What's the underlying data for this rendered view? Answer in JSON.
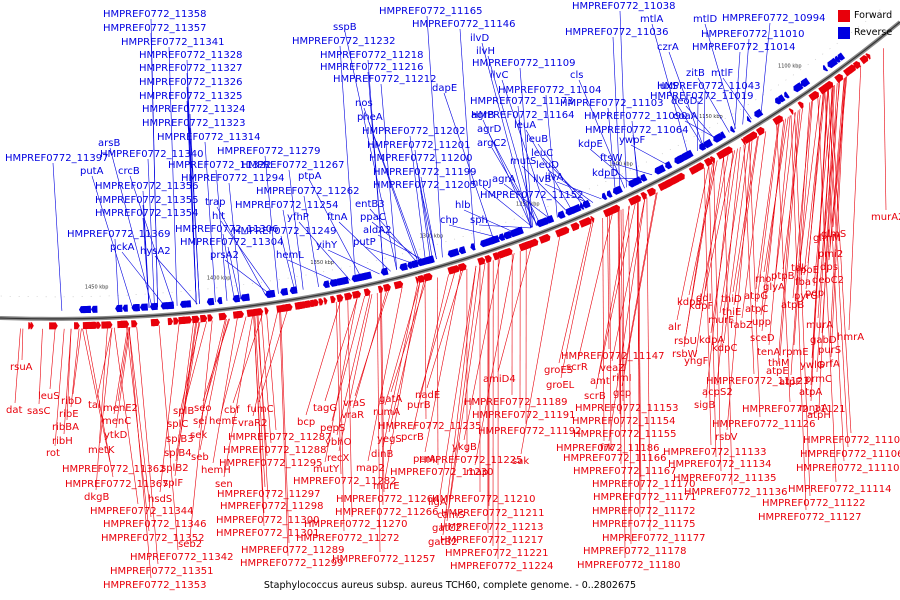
{
  "caption": "Staphylococcus aureus subsp. aureus TCH60, complete genome. - 0..2802675",
  "legend": [
    {
      "label": "Forward",
      "color": "#e8000b"
    },
    {
      "label": "Reverse",
      "color": "#0000e0"
    }
  ],
  "axis_ticks": [
    "1450 kbp",
    "1400 kbp",
    "1350 kbp",
    "1300 kbp",
    "1250 kbp",
    "1200 kbp",
    "1150 kbp",
    "1100 kbp"
  ],
  "reverse_labels": [
    "HMPREF0772_11358",
    "HMPREF0772_11357",
    "HMPREF0772_11341",
    "HMPREF0772_11328",
    "HMPREF0772_11327",
    "HMPREF0772_11326",
    "HMPREF0772_11325",
    "HMPREF0772_11324",
    "HMPREF0772_11323",
    "HMPREF0772_11314",
    "HMPREF0772_11340",
    "HMPREF0772_11322",
    "HMPREF0772_11356",
    "HMPREF0772_11355",
    "HMPREF0772_11354",
    "HMPREF0772_11369",
    "HMPREF0772_11397",
    "arsB",
    "crcB",
    "putA",
    "trap",
    "hit",
    "HMPREF0772_11306",
    "HMPREF0772_11304",
    "pckA",
    "hysA2",
    "prsA2",
    "HMPREF0772_11294",
    "HMPREF0772_11279",
    "HMPREF0772_11267",
    "ptpA",
    "HMPREF0772_11262",
    "HMPREF0772_11254",
    "HMPREF0772_11249",
    "yfhP",
    "ftnA",
    "yihY",
    "hemL",
    "putP",
    "sspB",
    "HMPREF0772_11232",
    "HMPREF0772_11218",
    "HMPREF0772_11216",
    "HMPREF0772_11212",
    "nos",
    "pheA",
    "HMPREF0772_11202",
    "HMPREF0772_11201",
    "HMPREF0772_11200",
    "HMPREF0772_11199",
    "HMPREF0772_11205",
    "entB3",
    "ppaC",
    "aldA2",
    "hlb",
    "chp",
    "sph",
    "HMPREF0772_11165",
    "HMPREF0772_11146",
    "ilvD",
    "ilvH",
    "ilvC",
    "HMPREF0772_11109",
    "dapE",
    "HMPREF0772_11173",
    "HMPREF0772_11164",
    "agrB",
    "agrD",
    "argC2",
    "ntpJ",
    "agrA",
    "leuA",
    "leuB",
    "leuC",
    "leuD",
    "mutS",
    "ilvB",
    "ilvA",
    "HMPREF0772_11152",
    "cls",
    "HMPREF0772_11104",
    "HMPREF0772_11103",
    "HMPREF0772_11090",
    "HMPREF0772_11064",
    "kdpE",
    "ywpF",
    "ftsW",
    "kdpD",
    "HMPREF0772_11038",
    "mtlA",
    "mtlD",
    "HMPREF0772_11036",
    "czrA",
    "HMPREF0772_11014",
    "HMPREF0772_11019",
    "HMPREF0772_11043",
    "luxS",
    "zitB",
    "mtlF",
    "deoD2",
    "coaA",
    "HMPREF0772_10994",
    "HMPREF0772_11010"
  ],
  "forward_labels": [
    "rsuA",
    "dat",
    "leuS",
    "sasC",
    "ribD",
    "ribE",
    "ribBA",
    "ribH",
    "rot",
    "tal",
    "menE2",
    "menC",
    "ytkD",
    "metK",
    "HMPREF0772_11362",
    "HMPREF0772_11367",
    "dkgB",
    "splB",
    "splC",
    "splB3",
    "splB4",
    "splB2",
    "splF",
    "seo",
    "sei",
    "sek",
    "seb",
    "hemE",
    "hemH",
    "sen",
    "hsdS",
    "cbf",
    "fumC",
    "vraR2",
    "HMPREF0772_11287",
    "HMPREF0772_11288",
    "HMPREF0772_11295",
    "HMPREF0772_11297",
    "HMPREF0772_11298",
    "HMPREF0772_11300",
    "HMPREF0772_11301",
    "HMPREF0772_11344",
    "HMPREF0772_11346",
    "HMPREF0772_11352",
    "seb2",
    "HMPREF0772_11342",
    "HMPREF0772_11351",
    "HMPREF0772_11353",
    "HMPREF0772_11289",
    "HMPREF0772_11299",
    "bcp",
    "tagG",
    "vraS",
    "vraR",
    "pepS",
    "ybhO",
    "recX",
    "mutY",
    "HMPREF0772_11282",
    "HMPREF0772_11264",
    "HMPREF0772_11266",
    "HMPREF0772_11270",
    "HMPREF0772_11272",
    "HMPREF0772_11257",
    "rumA",
    "gatA",
    "nadE",
    "purB",
    "HMPREF0772_11235",
    "map2",
    "dinB",
    "yegS",
    "pcrB",
    "murE",
    "pcrA",
    "ligA",
    "camS",
    "gatC2",
    "gatB2",
    "ykgB",
    "HMPREF0772_11225",
    "HMPREF0772_11230",
    "map",
    "HMPREF0772_11210",
    "HMPREF0772_11211",
    "HMPREF0772_11213",
    "HMPREF0772_11217",
    "HMPREF0772_11221",
    "HMPREF0772_11224",
    "amiD4",
    "HMPREF0772_11189",
    "HMPREF0772_11191",
    "HMPREF0772_11192",
    "sak",
    "groES",
    "groEL",
    "scrR",
    "veaZ",
    "amt",
    "rimI",
    "scrB",
    "gcp",
    "HMPREF0772_11147",
    "HMPREF0772_11153",
    "HMPREF0772_11154",
    "HMPREF0772_11155",
    "frk",
    "HMPREF0772_11186",
    "HMPREF0772_11166",
    "HMPREF0772_11167",
    "HMPREF0772_11170",
    "HMPREF0772_11171",
    "HMPREF0772_11172",
    "HMPREF0772_11175",
    "HMPREF0772_11177",
    "HMPREF0772_11178",
    "HMPREF0772_11180",
    "kdpB",
    "alr",
    "rsbU",
    "rsbW",
    "yhgF",
    "kdpF",
    "kdpA",
    "kdpC",
    "ddl",
    "thiD",
    "thiE",
    "atpG",
    "atpC",
    "murF",
    "acpS2",
    "sigB",
    "rsbV",
    "HMPREF0772_11123",
    "HMPREF0772_11121",
    "HMPREF0772_11126",
    "HMPREF0772_11133",
    "HMPREF0772_11134",
    "HMPREF0772_11135",
    "HMPREF0772_11136",
    "sceD",
    "tenA",
    "thiM",
    "fabZ",
    "upp",
    "glyA",
    "ptpB",
    "atpB",
    "atpE",
    "atpF",
    "atpA",
    "atpH",
    "mnaA",
    "prmC",
    "ywlG",
    "rpmE",
    "purS",
    "prfA",
    "murA",
    "gabD",
    "hmrA",
    "rho",
    "tdk",
    "pyrG",
    "fba",
    "rpoE",
    "pdp",
    "deoC2",
    "dps",
    "pmi2",
    "glmS",
    "glmM",
    "murA2",
    "HMPREF0772_11102",
    "HMPREF0772_11106",
    "HMPREF0772_11110",
    "HMPREF0772_11114",
    "HMPREF0772_11122",
    "HMPREF0772_11127"
  ]
}
